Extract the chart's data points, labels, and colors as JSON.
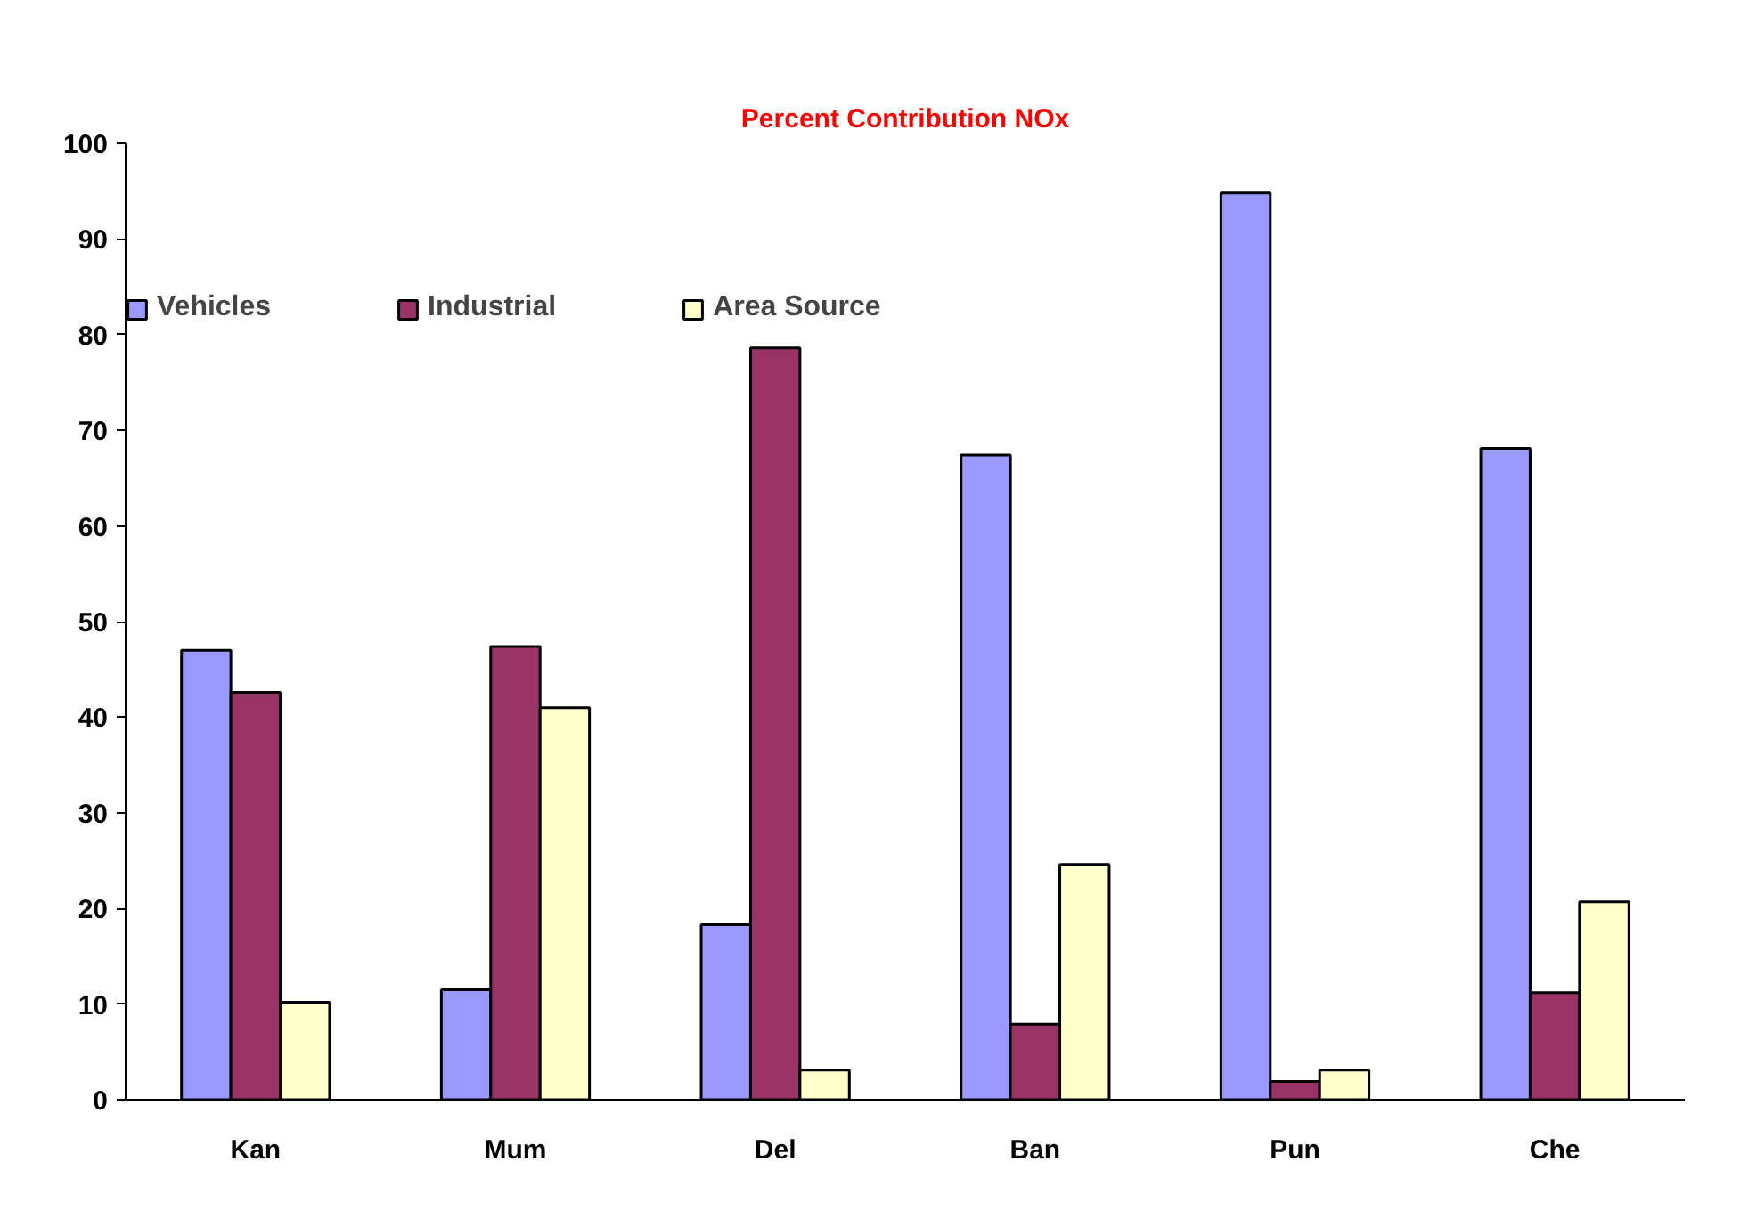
{
  "chart_data": {
    "type": "bar",
    "title": "Percent Contribution NOx",
    "categories": [
      "Kan",
      "Mum",
      "Del",
      "Ban",
      "Pun",
      "Che"
    ],
    "series": [
      {
        "name": "Vehicles",
        "color": "#9999ff",
        "values": [
          47.0,
          11.5,
          18.3,
          67.4,
          94.8,
          68.1
        ]
      },
      {
        "name": "Industrial",
        "color": "#993366",
        "values": [
          42.6,
          47.4,
          78.6,
          7.9,
          1.9,
          11.2
        ]
      },
      {
        "name": "Area Source",
        "color": "#ffffcc",
        "values": [
          10.2,
          41.0,
          3.1,
          24.6,
          3.1,
          20.7
        ]
      }
    ],
    "ylim": [
      0,
      100
    ],
    "yticks": [
      0,
      10,
      20,
      30,
      40,
      50,
      60,
      70,
      80,
      90,
      100
    ],
    "grid": false,
    "legend": "top left"
  }
}
